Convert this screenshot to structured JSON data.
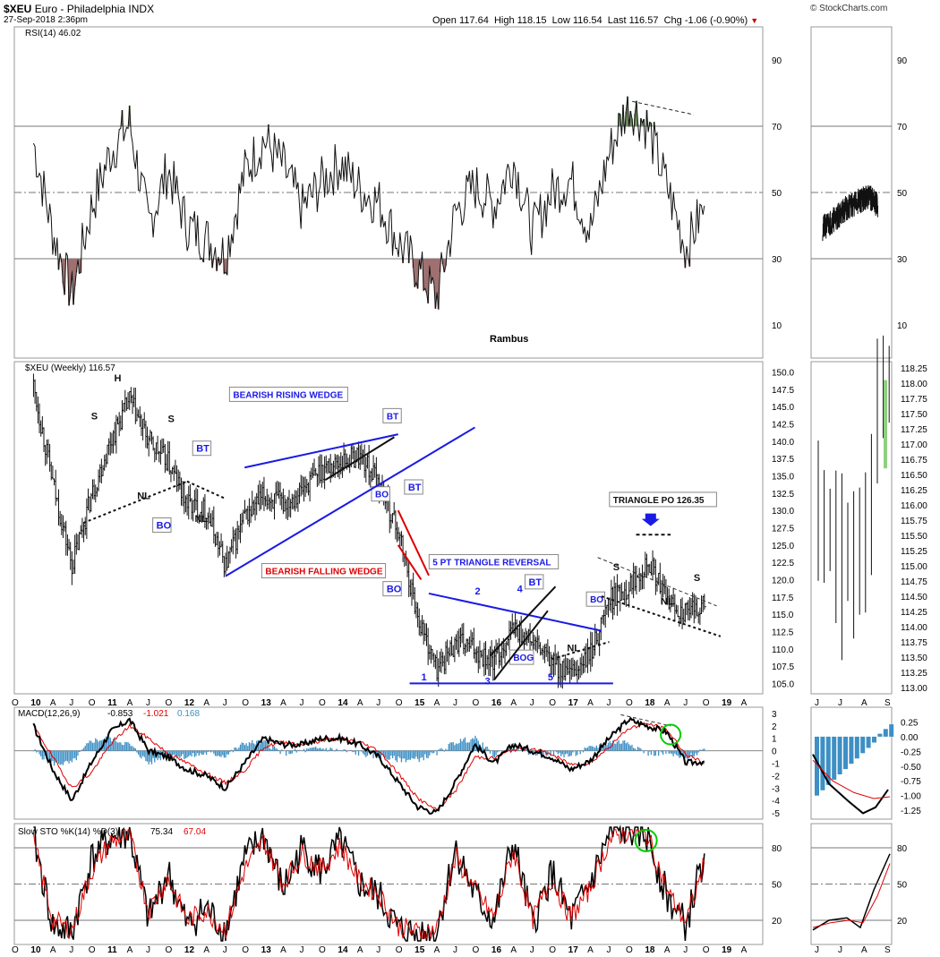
{
  "header": {
    "symbol": "$XEU",
    "name": "Euro - Philadelphia INDX",
    "date": "27-Sep-2018 2:36pm",
    "open_label": "Open",
    "open": "117.64",
    "high_label": "High",
    "high": "118.15",
    "low_label": "Low",
    "low": "116.54",
    "last_label": "Last",
    "last": "116.57",
    "chg_label": "Chg",
    "chg": "-1.06 (-0.90%)",
    "brand": "© StockCharts.com"
  },
  "colors": {
    "blue": "#1a1ae6",
    "red": "#e00000",
    "hist": "#3d8fc4",
    "ob": "#6b8a5e",
    "os": "#a07070"
  },
  "icons": {
    "down_arrow": "down-arrow-icon"
  },
  "chart_data": [
    {
      "type": "line",
      "panel": "rsi",
      "legend": "RSI(14) 46.02",
      "ylim": [
        0,
        100
      ],
      "yticks": [
        90,
        70,
        50,
        30,
        10
      ],
      "reference_lines": [
        70,
        50,
        30
      ],
      "x": [
        2010.0,
        2010.25,
        2010.5,
        2010.75,
        2011.0,
        2011.25,
        2011.5,
        2011.75,
        2012.0,
        2012.25,
        2012.5,
        2012.75,
        2013.0,
        2013.25,
        2013.5,
        2013.75,
        2014.0,
        2014.25,
        2014.5,
        2014.75,
        2015.0,
        2015.25,
        2015.5,
        2015.75,
        2016.0,
        2016.25,
        2016.5,
        2016.75,
        2017.0,
        2017.25,
        2017.5,
        2017.75,
        2018.0,
        2018.25,
        2018.5,
        2018.74
      ],
      "values": [
        65,
        38,
        19,
        45,
        62,
        71,
        40,
        57,
        40,
        36,
        31,
        56,
        66,
        58,
        45,
        53,
        59,
        51,
        47,
        35,
        27,
        18,
        44,
        52,
        46,
        60,
        38,
        50,
        54,
        38,
        62,
        77,
        70,
        52,
        33,
        46
      ],
      "annotation": "Rambus",
      "inset": {
        "x": [
          2018.5,
          2018.6,
          2018.7,
          2018.74
        ],
        "values": [
          39,
          45,
          49,
          46
        ]
      }
    },
    {
      "type": "candlestick",
      "panel": "price",
      "legend": "$XEU (Weekly) 116.57",
      "ylim": [
        103.5,
        151.5
      ],
      "yticks": [
        150.0,
        147.5,
        145.0,
        142.5,
        140.0,
        137.5,
        135.0,
        132.5,
        130.0,
        127.5,
        125.0,
        122.5,
        120.0,
        117.5,
        115.0,
        112.5,
        110.0,
        107.5,
        105.0
      ],
      "x_ticks": [
        "O",
        "10",
        "A",
        "J",
        "O",
        "11",
        "A",
        "J",
        "O",
        "12",
        "A",
        "J",
        "O",
        "13",
        "A",
        "J",
        "O",
        "14",
        "A",
        "J",
        "O",
        "15",
        "A",
        "J",
        "O",
        "16",
        "A",
        "J",
        "O",
        "17",
        "A",
        "J",
        "O",
        "18",
        "A",
        "J",
        "O",
        "19",
        "A"
      ],
      "x": [
        2010.0,
        2010.25,
        2010.5,
        2010.75,
        2011.0,
        2011.25,
        2011.5,
        2011.75,
        2012.0,
        2012.25,
        2012.5,
        2012.75,
        2013.0,
        2013.25,
        2013.5,
        2013.75,
        2014.0,
        2014.25,
        2014.5,
        2014.75,
        2015.0,
        2015.25,
        2015.5,
        2015.75,
        2016.0,
        2016.25,
        2016.5,
        2016.75,
        2017.0,
        2017.25,
        2017.5,
        2017.75,
        2018.0,
        2018.25,
        2018.5,
        2018.74
      ],
      "values": [
        148,
        134,
        122,
        132,
        140,
        146,
        140,
        137,
        131,
        130,
        122,
        129,
        132,
        131,
        133,
        136,
        137,
        138,
        134,
        127,
        115,
        107,
        111,
        110,
        108,
        113,
        111,
        108,
        106,
        109,
        117,
        119,
        123,
        117,
        115,
        116.57
      ],
      "inset": {
        "x_ticks": [
          "J",
          "J",
          "A",
          "S"
        ],
        "yticks": [
          118.25,
          118.0,
          117.75,
          117.5,
          117.25,
          117.0,
          116.75,
          116.5,
          116.25,
          116.0,
          115.75,
          115.5,
          115.25,
          115.0,
          114.75,
          114.5,
          114.25,
          114.0,
          113.75,
          113.5,
          113.25,
          113.0
        ]
      },
      "annotations": [
        "H",
        "S",
        "S",
        "NL",
        "BO",
        "BT",
        "NL",
        "BEARISH RISING WEDGE",
        "BT",
        "BO",
        "BT",
        "BEARISH FALLING WEDGE",
        "BO",
        "5 PT TRIANGLE REVERSAL",
        "BT",
        "1",
        "2",
        "3",
        "4",
        "5",
        "BOG",
        "NL",
        "BO",
        "TRIANGLE PO 126.35",
        "S",
        "S",
        "NL"
      ]
    },
    {
      "type": "line",
      "panel": "macd",
      "legend_name": "MACD(12,26,9)",
      "legend_values": [
        "-0.853",
        "-1.021",
        "0.168"
      ],
      "ylim": [
        -5.5,
        3.5
      ],
      "yticks": [
        3,
        2,
        1,
        0,
        -1,
        -2,
        -3,
        -4,
        -5
      ],
      "x": [
        2010.0,
        2010.25,
        2010.5,
        2010.75,
        2011.0,
        2011.25,
        2011.5,
        2011.75,
        2012.0,
        2012.25,
        2012.5,
        2012.75,
        2013.0,
        2013.25,
        2013.5,
        2013.75,
        2014.0,
        2014.25,
        2014.5,
        2014.75,
        2015.0,
        2015.25,
        2015.5,
        2015.75,
        2016.0,
        2016.25,
        2016.5,
        2016.75,
        2017.0,
        2017.25,
        2017.5,
        2017.75,
        2018.0,
        2018.25,
        2018.5,
        2018.74
      ],
      "series": [
        {
          "values": [
            2.0,
            -1.5,
            -4.0,
            -1.0,
            1.5,
            2.5,
            0.0,
            -0.5,
            -1.5,
            -2.0,
            -3.0,
            -1.0,
            1.0,
            0.5,
            0.5,
            1.0,
            1.0,
            0.5,
            -0.5,
            -2.5,
            -4.5,
            -5.0,
            -2.5,
            0.5,
            -1.0,
            0.5,
            0.0,
            -0.5,
            -1.5,
            -0.8,
            1.0,
            2.5,
            2.0,
            1.5,
            -1.0,
            -0.853
          ]
        },
        {
          "values": [
            2.0,
            -0.5,
            -3.0,
            -1.8,
            0.5,
            2.0,
            1.0,
            -0.2,
            -1.0,
            -1.8,
            -2.6,
            -1.6,
            0.3,
            0.7,
            0.5,
            0.8,
            1.0,
            0.7,
            0.0,
            -1.8,
            -3.8,
            -4.8,
            -3.2,
            -0.5,
            -0.6,
            0.1,
            0.2,
            -0.3,
            -1.1,
            -1.0,
            0.3,
            1.8,
            2.2,
            1.7,
            -0.3,
            -1.021
          ]
        },
        {
          "values": [
            0,
            -1.0,
            -1.0,
            0.8,
            1.0,
            0.5,
            -1.0,
            -0.3,
            -0.5,
            -0.2,
            -0.4,
            0.6,
            0.7,
            -0.2,
            0.0,
            0.2,
            0.0,
            -0.2,
            -0.5,
            -0.7,
            -0.7,
            -0.2,
            0.7,
            1.0,
            -0.4,
            0.4,
            -0.2,
            -0.2,
            -0.4,
            0.2,
            0.7,
            0.7,
            -0.2,
            -0.2,
            -0.7,
            0.168
          ]
        }
      ],
      "inset_yticks": [
        0.25,
        0.0,
        -0.25,
        -0.5,
        -0.75,
        -1.0,
        -1.25
      ]
    },
    {
      "type": "line",
      "panel": "stochastic",
      "legend_name": "Slow STO %K(14) %D(3)",
      "legend_values": [
        "75.34",
        "67.04"
      ],
      "ylim": [
        0,
        100
      ],
      "yticks": [
        80,
        50,
        20
      ],
      "x": [
        2010.0,
        2010.25,
        2010.5,
        2010.75,
        2011.0,
        2011.25,
        2011.5,
        2011.75,
        2012.0,
        2012.25,
        2012.5,
        2012.75,
        2013.0,
        2013.25,
        2013.5,
        2013.75,
        2014.0,
        2014.25,
        2014.5,
        2014.75,
        2015.0,
        2015.25,
        2015.5,
        2015.75,
        2016.0,
        2016.25,
        2016.5,
        2016.75,
        2017.0,
        2017.25,
        2017.5,
        2017.75,
        2018.0,
        2018.25,
        2018.5,
        2018.74
      ],
      "series": [
        {
          "values": [
            90,
            15,
            10,
            70,
            88,
            92,
            20,
            60,
            15,
            30,
            10,
            70,
            90,
            45,
            80,
            60,
            85,
            50,
            40,
            12,
            8,
            10,
            80,
            40,
            20,
            85,
            15,
            60,
            20,
            50,
            90,
            95,
            90,
            40,
            15,
            75.34
          ]
        },
        {
          "values": [
            85,
            20,
            12,
            60,
            85,
            90,
            28,
            55,
            20,
            28,
            12,
            62,
            86,
            50,
            75,
            62,
            82,
            52,
            42,
            15,
            10,
            12,
            72,
            45,
            22,
            78,
            20,
            55,
            22,
            46,
            86,
            94,
            90,
            45,
            18,
            67.04
          ]
        }
      ]
    }
  ]
}
